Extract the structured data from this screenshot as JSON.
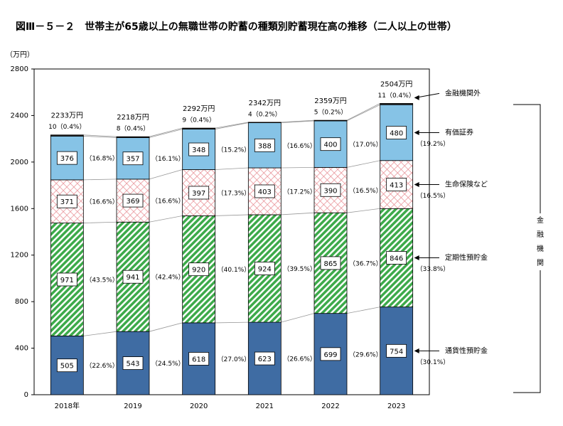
{
  "chart_data": {
    "type": "stacked-bar",
    "title": "図Ⅲ－５－２　世帯主が65歳以上の無職世帯の貯蓄の種類別貯蓄現在高の推移（二人以上の世帯）",
    "y_unit": "（万円）",
    "categories": [
      "2018年",
      "2019",
      "2020",
      "2021",
      "2022",
      "2023"
    ],
    "ylim": [
      0,
      2800
    ],
    "yticks": [
      0,
      400,
      800,
      1200,
      1600,
      2000,
      2400,
      2800
    ],
    "series": [
      {
        "name": "通貨性預貯金",
        "color": "#3f6ca3",
        "fill_style": "solid",
        "values": [
          505,
          543,
          618,
          623,
          699,
          754
        ],
        "share_labels": [
          "（22.6%）",
          "（24.5%）",
          "（27.0%）",
          "（26.6%）",
          "（29.6%）",
          "（30.1%）"
        ]
      },
      {
        "name": "定期性預貯金",
        "color": "#3daa4a",
        "fill_style": "diagonal",
        "values": [
          971,
          941,
          920,
          924,
          865,
          846
        ],
        "share_labels": [
          "（43.5%）",
          "（42.4%）",
          "（40.1%）",
          "（39.5%）",
          "（36.7%）",
          "（33.8%）"
        ]
      },
      {
        "name": "生命保険など",
        "color": "#e88f95",
        "fill_style": "crosshatch",
        "values": [
          371,
          369,
          397,
          403,
          390,
          413
        ],
        "share_labels": [
          "（16.6%）",
          "（16.6%）",
          "（17.3%）",
          "（17.2%）",
          "（16.5%）",
          "（16.5%）"
        ]
      },
      {
        "name": "有価証券",
        "color": "#86c3e6",
        "fill_style": "solid",
        "values": [
          376,
          357,
          348,
          388,
          400,
          480
        ],
        "share_labels": [
          "（16.8%）",
          "（16.1%）",
          "（15.2%）",
          "（16.6%）",
          "（17.0%）",
          "（19.2%）"
        ]
      },
      {
        "name": "金融機関外",
        "color": "#222222",
        "fill_style": "solid",
        "values": [
          10,
          8,
          9,
          4,
          5,
          11
        ],
        "value_labels": [
          "10（0.4%）",
          "8（0.4%）",
          "9（0.4%）",
          "4（0.2%）",
          "5（0.2%）",
          "11（0.4%）"
        ]
      }
    ],
    "totals": [
      2233,
      2218,
      2292,
      2342,
      2359,
      2504
    ],
    "total_labels": [
      "2233万円",
      "2218万円",
      "2292万円",
      "2342万円",
      "2359万円",
      "2504万円"
    ],
    "bracket_label": "金融機関"
  }
}
